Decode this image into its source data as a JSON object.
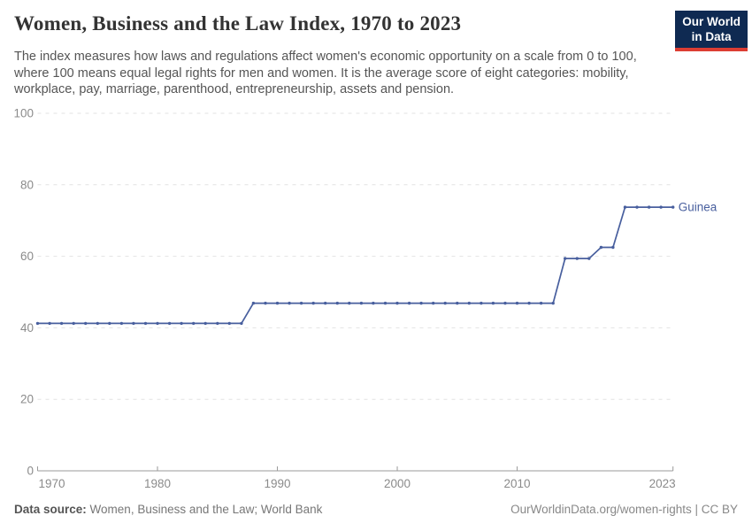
{
  "header": {
    "title": "Women, Business and the Law Index, 1970 to 2023",
    "subtitle_lines": [
      "The index measures how laws and regulations affect women's economic opportunity on a scale from 0 to 100,",
      "where 100 means equal legal rights for men and women. It is the average score of eight categories: mobility,",
      "workplace, pay, marriage, parenthood, entrepreneurship, assets and pension."
    ],
    "logo": {
      "line1": "Our World",
      "line2": "in Data",
      "bg_color": "#0f2a52",
      "bar_color": "#dc3d33"
    }
  },
  "chart_data": {
    "type": "line",
    "title": "Women, Business and the Law Index, 1970 to 2023",
    "xlabel": "",
    "ylabel": "",
    "xlim": [
      1970,
      2023
    ],
    "ylim": [
      0,
      100
    ],
    "x_ticks": [
      1970,
      1980,
      1990,
      2000,
      2010,
      2023
    ],
    "y_ticks": [
      0,
      20,
      40,
      60,
      80,
      100
    ],
    "grid": "horizontal-dashed",
    "legend_position": "end-of-line-label",
    "x": [
      1970,
      1971,
      1972,
      1973,
      1974,
      1975,
      1976,
      1977,
      1978,
      1979,
      1980,
      1981,
      1982,
      1983,
      1984,
      1985,
      1986,
      1987,
      1988,
      1989,
      1990,
      1991,
      1992,
      1993,
      1994,
      1995,
      1996,
      1997,
      1998,
      1999,
      2000,
      2001,
      2002,
      2003,
      2004,
      2005,
      2006,
      2007,
      2008,
      2009,
      2010,
      2011,
      2012,
      2013,
      2014,
      2015,
      2016,
      2017,
      2018,
      2019,
      2020,
      2021,
      2022,
      2023
    ],
    "series": [
      {
        "name": "Guinea",
        "color": "#485f9e",
        "values": [
          41.25,
          41.25,
          41.25,
          41.25,
          41.25,
          41.25,
          41.25,
          41.25,
          41.25,
          41.25,
          41.25,
          41.25,
          41.25,
          41.25,
          41.25,
          41.25,
          41.25,
          41.25,
          46.875,
          46.875,
          46.875,
          46.875,
          46.875,
          46.875,
          46.875,
          46.875,
          46.875,
          46.875,
          46.875,
          46.875,
          46.875,
          46.875,
          46.875,
          46.875,
          46.875,
          46.875,
          46.875,
          46.875,
          46.875,
          46.875,
          46.875,
          46.875,
          46.875,
          46.875,
          59.375,
          59.375,
          59.375,
          62.5,
          62.5,
          73.75,
          73.75,
          73.75,
          73.75,
          73.75
        ]
      }
    ],
    "colors": {
      "gridline": "#e2e2e2",
      "axis": "#9a9a9a",
      "tick_label": "#8b8b8b"
    }
  },
  "footer": {
    "source_label": "Data source:",
    "source_value": "Women, Business and the Law; World Bank",
    "link": "OurWorldinData.org/women-rights | CC BY"
  }
}
